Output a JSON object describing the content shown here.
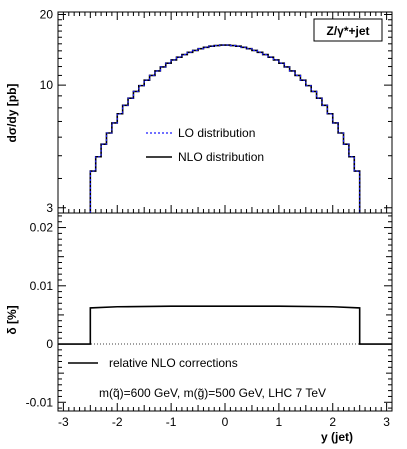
{
  "chart_data": [
    {
      "type": "line",
      "title": "",
      "badge": "Z/γ*+jet",
      "xlabel": "",
      "ylabel": "dσ/dy [pb]",
      "xlim": [
        -3.1,
        3.1
      ],
      "ylim": [
        2.85,
        20.5
      ],
      "yscale": "log",
      "yticks": [
        3,
        10,
        20
      ],
      "ytick_labels": [
        "3",
        "10",
        "20"
      ],
      "legend_position": "center",
      "x_edges": [
        -2.5,
        -2.4,
        -2.3,
        -2.2,
        -2.1,
        -2.0,
        -1.9,
        -1.8,
        -1.7,
        -1.6,
        -1.5,
        -1.4,
        -1.3,
        -1.2,
        -1.1,
        -1.0,
        -0.9,
        -0.8,
        -0.7,
        -0.6,
        -0.5,
        -0.4,
        -0.3,
        -0.2,
        -0.1,
        0.0,
        0.1,
        0.2,
        0.3,
        0.4,
        0.5,
        0.6,
        0.7,
        0.8,
        0.9,
        1.0,
        1.1,
        1.2,
        1.3,
        1.4,
        1.5,
        1.6,
        1.7,
        1.8,
        1.9,
        2.0,
        2.1,
        2.2,
        2.3,
        2.4,
        2.5
      ],
      "series": [
        {
          "name": "LO distribution",
          "style": "dashed",
          "color": "#1a1aff",
          "values": [
            4.3,
            4.95,
            5.6,
            6.25,
            6.9,
            7.55,
            8.2,
            8.8,
            9.4,
            9.95,
            10.5,
            11.0,
            11.5,
            11.95,
            12.4,
            12.8,
            13.15,
            13.5,
            13.8,
            14.05,
            14.3,
            14.5,
            14.65,
            14.75,
            14.82,
            14.82,
            14.75,
            14.65,
            14.5,
            14.3,
            14.05,
            13.8,
            13.5,
            13.15,
            12.8,
            12.4,
            11.95,
            11.5,
            11.0,
            10.5,
            9.95,
            9.4,
            8.8,
            8.2,
            7.55,
            6.9,
            6.25,
            5.6,
            4.95,
            4.3
          ]
        },
        {
          "name": "NLO distribution",
          "style": "solid",
          "color": "#000000",
          "values": [
            4.3,
            4.95,
            5.6,
            6.25,
            6.9,
            7.55,
            8.2,
            8.8,
            9.4,
            9.95,
            10.5,
            11.0,
            11.5,
            11.95,
            12.4,
            12.8,
            13.15,
            13.5,
            13.8,
            14.05,
            14.3,
            14.5,
            14.65,
            14.75,
            14.82,
            14.82,
            14.75,
            14.65,
            14.5,
            14.3,
            14.05,
            13.8,
            13.5,
            13.15,
            12.8,
            12.4,
            11.95,
            11.5,
            11.0,
            10.5,
            9.95,
            9.4,
            8.8,
            8.2,
            7.55,
            6.9,
            6.25,
            5.6,
            4.95,
            4.3
          ]
        }
      ]
    },
    {
      "type": "line",
      "title": "",
      "xlabel": "y (jet)",
      "ylabel": "δ [%]",
      "xlim": [
        -3.1,
        3.1
      ],
      "ylim": [
        -0.0115,
        0.0225
      ],
      "xticks": [
        -3,
        -2,
        -1,
        0,
        1,
        2,
        3
      ],
      "xtick_labels": [
        "-3",
        "-2",
        "-1",
        "0",
        "1",
        "2",
        "3"
      ],
      "yticks": [
        -0.01,
        0,
        0.01,
        0.02
      ],
      "ytick_labels": [
        "-0.01",
        "0",
        "0.01",
        "0.02"
      ],
      "reference_line": 0,
      "legend_position": "bottom-left",
      "x": [
        -3.1,
        -2.5,
        -2.5,
        -2.0,
        -1.0,
        0.0,
        1.0,
        2.0,
        2.5,
        2.5,
        3.1
      ],
      "series": [
        {
          "name": "relative NLO corrections",
          "style": "solid",
          "color": "#000000",
          "values": [
            0,
            0,
            0.0062,
            0.0064,
            0.0065,
            0.0065,
            0.0065,
            0.0064,
            0.0062,
            0,
            0
          ]
        }
      ],
      "annotation": "m(q̃)=600 GeV, m(g̃)=500 GeV, LHC 7 TeV"
    }
  ]
}
